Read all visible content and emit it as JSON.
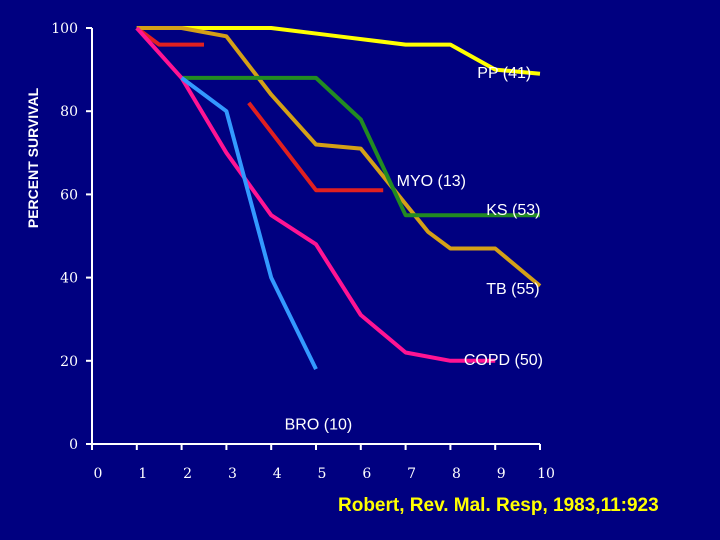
{
  "chart_data": {
    "type": "line",
    "title": "",
    "xlabel": "",
    "ylabel": "PERCENT SURVIVAL",
    "xlim": [
      0,
      10
    ],
    "ylim": [
      0,
      100
    ],
    "x_ticks": [
      "0",
      "1",
      "2",
      "3",
      "4",
      "5",
      "6",
      "7",
      "8",
      "9",
      "10"
    ],
    "y_ticks": [
      "0",
      "20",
      "40",
      "60",
      "80",
      "100"
    ],
    "series": [
      {
        "name": "PP (41)",
        "color": "#ffff00",
        "points": [
          [
            1,
            100
          ],
          [
            4,
            100
          ],
          [
            5.5,
            98
          ],
          [
            7,
            96
          ],
          [
            8,
            96
          ],
          [
            9,
            90
          ],
          [
            10,
            89
          ]
        ]
      },
      {
        "name": "MYO (13)",
        "color": "#e02020",
        "points": [
          [
            1,
            100
          ],
          [
            1.5,
            96
          ],
          [
            2.5,
            96
          ]
        ]
      },
      {
        "name": "MYO (13)",
        "color": "#e02020",
        "points": [
          [
            3.5,
            82
          ],
          [
            5,
            61
          ],
          [
            6.5,
            61
          ]
        ]
      },
      {
        "name": "TB (55)",
        "color": "#d4a017",
        "points": [
          [
            1,
            100
          ],
          [
            2,
            100
          ],
          [
            3,
            98
          ],
          [
            4,
            84
          ],
          [
            5,
            72
          ],
          [
            6,
            71
          ],
          [
            7.5,
            51
          ],
          [
            8,
            47
          ],
          [
            9,
            47
          ],
          [
            10,
            38
          ]
        ]
      },
      {
        "name": "KS (53)",
        "color": "#228b22",
        "points": [
          [
            2,
            88
          ],
          [
            5,
            88
          ],
          [
            6,
            78
          ],
          [
            7,
            55
          ],
          [
            10,
            55
          ]
        ]
      },
      {
        "name": "COPD (50)",
        "color": "#ff1493",
        "points": [
          [
            1,
            100
          ],
          [
            2,
            88
          ],
          [
            3,
            70
          ],
          [
            4,
            55
          ],
          [
            5,
            48
          ],
          [
            6,
            31
          ],
          [
            7,
            22
          ],
          [
            8,
            20
          ],
          [
            9,
            20
          ]
        ]
      },
      {
        "name": "BRO (10)",
        "color": "#3399ff",
        "points": [
          [
            2,
            88
          ],
          [
            3,
            80
          ],
          [
            4,
            40
          ],
          [
            5,
            18
          ]
        ]
      }
    ],
    "labels": [
      {
        "text": "PP (41)",
        "x": 8.6,
        "y": 88
      },
      {
        "text": "MYO (13)",
        "x": 6.8,
        "y": 62
      },
      {
        "text": "KS (53)",
        "x": 8.8,
        "y": 55
      },
      {
        "text": "TB (55)",
        "x": 8.8,
        "y": 36
      },
      {
        "text": "COPD (50)",
        "x": 8.3,
        "y": 19
      },
      {
        "text": "BRO (10)",
        "x": 4.3,
        "y": 3.5
      }
    ],
    "citation": "Robert, Rev. Mal. Resp, 1983,11:923"
  }
}
